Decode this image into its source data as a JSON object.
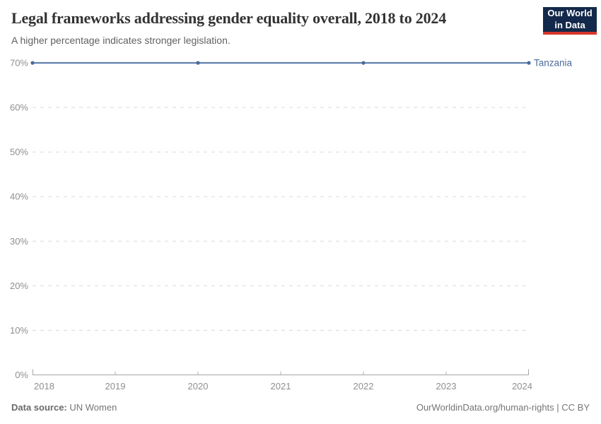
{
  "header": {
    "title": "Legal frameworks addressing gender equality overall, 2018 to 2024",
    "subtitle": "A higher percentage indicates stronger legislation.",
    "logo": {
      "line1": "Our World",
      "line2": "in Data"
    }
  },
  "chart_data": {
    "type": "line",
    "title": "Legal frameworks addressing gender equality overall, 2018 to 2024",
    "subtitle": "A higher percentage indicates stronger legislation.",
    "xlabel": "",
    "ylabel": "",
    "unit": "%",
    "xlim": [
      2018,
      2024
    ],
    "ylim": [
      0,
      70
    ],
    "x_ticks": [
      2018,
      2019,
      2020,
      2021,
      2022,
      2023,
      2024
    ],
    "y_ticks": [
      0,
      10,
      20,
      30,
      40,
      50,
      60,
      70
    ],
    "y_tick_suffix": "%",
    "grid": true,
    "legend_position": "end-of-line",
    "series": [
      {
        "name": "Tanzania",
        "x": [
          2018,
          2020,
          2022,
          2024
        ],
        "values": [
          70,
          70,
          70,
          70
        ],
        "color": "#4b6b9d",
        "line_color": "#6181ab"
      }
    ]
  },
  "footer": {
    "source_label": "Data source:",
    "source_value": " UN Women",
    "credit": "OurWorldinData.org/human-rights | CC BY"
  },
  "colors": {
    "accent_blue": "#4c6a9c",
    "gridline": "#dadada",
    "axis": "#a5a5a5",
    "tick": "#b3b3b3",
    "logo_navy": "#13294b",
    "logo_red": "#d8352a"
  }
}
